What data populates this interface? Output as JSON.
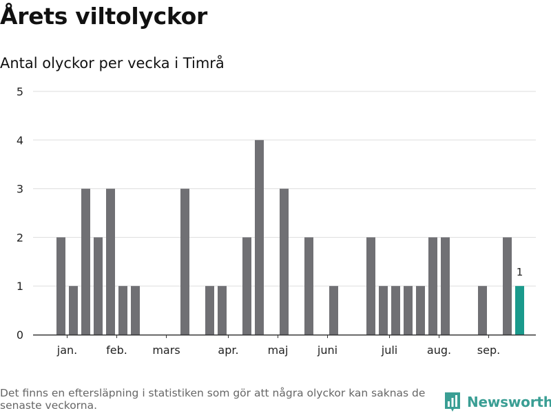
{
  "title": "Årets viltolyckor",
  "subtitle": "Antal olyckor per vecka i Timrå",
  "footnote": "Det finns en eftersläpning i statistiken som gör att några olyckor kan saknas de senaste veckorna.",
  "brand": {
    "name": "Newsworthy",
    "color": "#3a9e94",
    "icon": "newsworthy-logo-icon"
  },
  "colors": {
    "bar": "#707074",
    "highlight": "#1a9a8c",
    "grid": "#dddddd",
    "axis": "#333333"
  },
  "chart_data": {
    "type": "bar",
    "x_unit": "week",
    "weeks": [
      1,
      2,
      3,
      4,
      5,
      6,
      7,
      8,
      9,
      10,
      11,
      12,
      13,
      14,
      15,
      16,
      17,
      18,
      19,
      20,
      21,
      22,
      23,
      24,
      25,
      26,
      27,
      28,
      29,
      30,
      31,
      32,
      33,
      34,
      35,
      36,
      37,
      38,
      39
    ],
    "values": [
      2,
      1,
      3,
      2,
      3,
      1,
      1,
      0,
      0,
      0,
      3,
      0,
      1,
      1,
      0,
      2,
      4,
      0,
      3,
      0,
      2,
      0,
      1,
      0,
      0,
      2,
      1,
      1,
      1,
      1,
      2,
      2,
      0,
      0,
      1,
      0,
      2,
      1,
      null
    ],
    "highlight_week": 38,
    "data_labels": [
      {
        "week": 38,
        "text": "1"
      }
    ],
    "month_labels": [
      {
        "label": "jan.",
        "week": 1.5
      },
      {
        "label": "feb.",
        "week": 5.5
      },
      {
        "label": "mars",
        "week": 9.5
      },
      {
        "label": "apr.",
        "week": 14.5
      },
      {
        "label": "maj",
        "week": 18.5
      },
      {
        "label": "juni",
        "week": 22.5
      },
      {
        "label": "juli",
        "week": 27.5
      },
      {
        "label": "aug.",
        "week": 31.5
      },
      {
        "label": "sep.",
        "week": 35.5
      }
    ],
    "yticks": [
      0,
      1,
      2,
      3,
      4,
      5
    ],
    "ylim": [
      0,
      5
    ],
    "xlim": [
      0,
      39
    ],
    "grid": true,
    "legend": "none"
  }
}
